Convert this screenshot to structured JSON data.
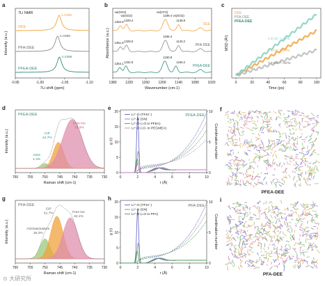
{
  "watermark": "⊙ 大研究所",
  "chart_data": [
    {
      "panel": "a",
      "type": "line",
      "title": "7Li NMR",
      "xlabel": "7Li shift (ppm)",
      "ylabel": "Intensity (a.u.)",
      "xlim": [
        -0.95,
        -1.1
      ],
      "x_reversed": true,
      "xticks": [
        "-0.95",
        "-1.00",
        "-1.05",
        "-1.10"
      ],
      "series": [
        {
          "name": "DEE",
          "color": "#f0a23c",
          "peak": -1.0389,
          "peak_label": "-1.0389",
          "label_color": "#f0a23c",
          "offset": 2
        },
        {
          "name": "PFA-DEE",
          "color": "#8a8a8a",
          "peak": -1.0359,
          "peak_label": "-1.0359",
          "label_color": "#555555",
          "offset": 1
        },
        {
          "name": "PFEA-DEE",
          "color": "#2e8b7a",
          "peak": -1.0396,
          "peak_label": "-1.0396",
          "label_color": "#2e8b7a",
          "offset": 0
        }
      ]
    },
    {
      "panel": "b",
      "type": "line",
      "xlabel": "Wavenumber (cm-1)",
      "ylabel": "Absorbance (a.u.)",
      "xlim": [
        1380,
        1020
      ],
      "x_reversed": true,
      "xticks": [
        "1380",
        "1320",
        "1260",
        "1200",
        "1140",
        "1080",
        "1020"
      ],
      "band_labels": [
        "νa(SO2)",
        "νa(SO2)",
        "νa(CF3)",
        "νs(SO2)"
      ],
      "series": [
        {
          "name": "DEE",
          "color": "#f0a23c",
          "offset": 2,
          "labels": [
            "1352.8",
            "1329.4",
            "1189.4",
            "1138.8"
          ]
        },
        {
          "name": "PFA-DEE",
          "color": "#8a8a8a",
          "offset": 1,
          "labels": [
            "1351.8",
            "1329.5",
            "1186.4",
            "1140.2"
          ]
        },
        {
          "name": "PFEA-DEE",
          "color": "#2e8b7a",
          "offset": 0,
          "labels": [
            "1354.1",
            "1332.5",
            "1190.8",
            "1150.2"
          ]
        }
      ]
    },
    {
      "panel": "c",
      "type": "line",
      "xlabel": "Time (ps)",
      "ylabel": "MSD (Å²)",
      "xlim": [
        0,
        100
      ],
      "ylim": [
        0,
        14
      ],
      "xticks": [
        0,
        20,
        40,
        60,
        80,
        100
      ],
      "legend": [
        "DEE",
        "PFA-DEE",
        "PFEA-DEE"
      ],
      "legend_position": "top-left",
      "series": [
        {
          "name": "DEE",
          "color": "#f0a23c",
          "x": [
            0,
            100
          ],
          "y": [
            0.5,
            9.5
          ],
          "annotation": "1.4×10⁻⁹ cm²/s"
        },
        {
          "name": "PFA-DEE",
          "color": "#b8b8b8",
          "x": [
            0,
            100
          ],
          "y": [
            0.5,
            5.6
          ],
          "annotation": "7.7×10⁻¹⁰ cm²/s"
        },
        {
          "name": "PFEA-DEE",
          "color": "#7fcfbf",
          "x": [
            0,
            100
          ],
          "y": [
            0.5,
            12.8
          ],
          "annotation": "2.0×10⁻⁹ cm²/s"
        }
      ]
    },
    {
      "panel": "d",
      "type": "area",
      "title": "PFEA-DEE",
      "xlabel": "Raman shift (cm-1)",
      "ylabel": "Intensity (a.u.)",
      "xlim": [
        760,
        730
      ],
      "x_reversed": true,
      "xticks": [
        "760",
        "755",
        "750",
        "745",
        "740",
        "735",
        "730"
      ],
      "components": [
        {
          "name": "AGG",
          "label": "AGG",
          "percent": "1.4%",
          "center": 750.0,
          "width": 1.3,
          "height": 0.1,
          "color": "#9bc87a"
        },
        {
          "name": "CIP",
          "label": "CIP",
          "percent": "24.7%",
          "center": 745.5,
          "width": 1.8,
          "height": 0.52,
          "color": "#f0a23c"
        },
        {
          "name": "Free ion",
          "label": "Free ion",
          "percent": "73.9%",
          "center": 740.8,
          "width": 3.3,
          "height": 0.98,
          "color": "#df8fae"
        }
      ]
    },
    {
      "panel": "e",
      "type": "line",
      "xlabel": "r (Å)",
      "ylabel": "g (r)",
      "y2label": "Coordination number",
      "title": "PFEA-DEE",
      "xlim": [
        0,
        10
      ],
      "ylim": [
        0,
        20
      ],
      "y2lim": [
        0,
        10
      ],
      "xticks": [
        0,
        2,
        4,
        6,
        8,
        10
      ],
      "yticks": [
        0,
        5,
        10,
        15,
        20
      ],
      "y2ticks": [
        0,
        5,
        10
      ],
      "legend": [
        "Li⁺-O (TFSI⁻)",
        "Li⁺-N (SN)",
        "Li⁺-O (=O in PFEA)",
        "Li⁺-O (-O- in PEGMEA)"
      ],
      "series": [
        {
          "name": "Li⁺-O (TFSI⁻)",
          "color": "#5f5fc8",
          "peak_r": 2.0,
          "peak_g": 18.5
        },
        {
          "name": "Li⁺-N (SN)",
          "color": "#8a8a8a",
          "peak_r": 2.05,
          "peak_g": 7.0
        },
        {
          "name": "Li⁺-O (=O in PFEA)",
          "color": "#3fa04a",
          "peak_r": 1.95,
          "peak_g": 4.5
        },
        {
          "name": "Li⁺-O (-O- in PEGMEA)",
          "color": "#d27ad2",
          "peak_r": 2.0,
          "peak_g": 3.0
        }
      ]
    },
    {
      "panel": "f",
      "type": "other",
      "title": "PFEA-DEE",
      "description_colors": [
        "#8bd07a",
        "#e08ab8",
        "#9b9b9b",
        "#e0b36a",
        "#7b7bd6"
      ]
    },
    {
      "panel": "g",
      "type": "area",
      "title": "PFA-DEE",
      "xlabel": "Raman shift (cm-1)",
      "ylabel": "Intensity (a.u.)",
      "xlim": [
        760,
        730
      ],
      "x_reversed": true,
      "xticks": [
        "760",
        "755",
        "750",
        "745",
        "740",
        "735",
        "730"
      ],
      "components": [
        {
          "name": "AGGs&clusters",
          "label": "AGGs&clusters",
          "percent": "16.2%",
          "center": 750.0,
          "width": 1.7,
          "height": 0.4,
          "color": "#9bc87a"
        },
        {
          "name": "CIP",
          "label": "CIP",
          "percent": "41.7%",
          "center": 746.0,
          "width": 2.1,
          "height": 0.85,
          "color": "#f0a23c"
        },
        {
          "name": "Free ion",
          "label": "Free ion",
          "percent": "42.1%",
          "center": 741.5,
          "width": 2.5,
          "height": 0.82,
          "color": "#df8fae"
        }
      ]
    },
    {
      "panel": "h",
      "type": "line",
      "xlabel": "r (Å)",
      "ylabel": "g (r)",
      "y2label": "Coordination number",
      "title": "PFA-DEE",
      "xlim": [
        0,
        10
      ],
      "ylim": [
        0,
        20
      ],
      "y2lim": [
        0,
        10
      ],
      "xticks": [
        0,
        2,
        4,
        6,
        8,
        10
      ],
      "yticks": [
        0,
        5,
        10,
        15,
        20
      ],
      "y2ticks": [
        0,
        5,
        10
      ],
      "legend": [
        "Li⁺-O (TFSI⁻)",
        "Li⁺-N (SN)",
        "Li⁺-O (=O in PFA)"
      ],
      "series": [
        {
          "name": "Li⁺-O (TFSI⁻)",
          "color": "#5f5fc8",
          "peak_r": 2.0,
          "peak_g": 17.5
        },
        {
          "name": "Li⁺-N (SN)",
          "color": "#8a8a8a",
          "peak_r": 2.05,
          "peak_g": 6.5
        },
        {
          "name": "Li⁺-O (=O in PFA)",
          "color": "#3fa04a",
          "peak_r": 1.95,
          "peak_g": 4.0
        }
      ]
    },
    {
      "panel": "i",
      "type": "other",
      "title": "PFA-DEE",
      "description_colors": [
        "#8bd07a",
        "#e08ab8",
        "#9b9b9b",
        "#e0b36a",
        "#7b7bd6"
      ]
    }
  ]
}
